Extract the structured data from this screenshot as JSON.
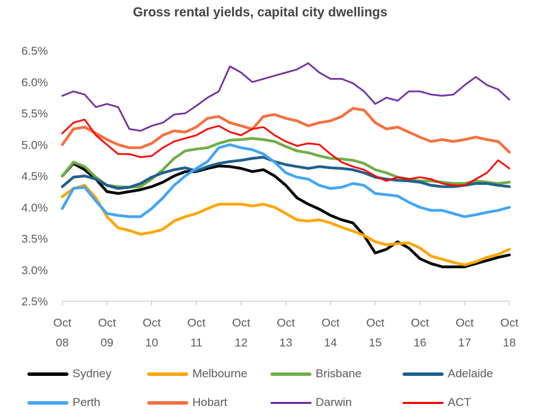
{
  "chart_data": {
    "type": "line",
    "title": "Gross rental yields, capital city dwellings",
    "xlabel": "",
    "ylabel": "",
    "x_ticks": [
      {
        "year": 2008,
        "top": "Oct",
        "bottom": "08"
      },
      {
        "year": 2009,
        "top": "Oct",
        "bottom": "09"
      },
      {
        "year": 2010,
        "top": "Oct",
        "bottom": "10"
      },
      {
        "year": 2011,
        "top": "Oct",
        "bottom": "11"
      },
      {
        "year": 2012,
        "top": "Oct",
        "bottom": "12"
      },
      {
        "year": 2013,
        "top": "Oct",
        "bottom": "13"
      },
      {
        "year": 2014,
        "top": "Oct",
        "bottom": "14"
      },
      {
        "year": 2015,
        "top": "Oct",
        "bottom": "15"
      },
      {
        "year": 2016,
        "top": "Oct",
        "bottom": "16"
      },
      {
        "year": 2017,
        "top": "Oct",
        "bottom": "17"
      },
      {
        "year": 2018,
        "top": "Oct",
        "bottom": "18"
      }
    ],
    "y_ticks": [
      2.5,
      3.0,
      3.5,
      4.0,
      4.5,
      5.0,
      5.5,
      6.0,
      6.5
    ],
    "y_tick_labels": [
      "2.5%",
      "3.0%",
      "3.5%",
      "4.0%",
      "4.5%",
      "5.0%",
      "5.5%",
      "6.0%",
      "6.5%"
    ],
    "xlim": [
      2008,
      2018
    ],
    "ylim": [
      2.5,
      6.5
    ],
    "x_unit": "years since Oct 2008 (Oct = .0)",
    "legend_position": "bottom",
    "series": [
      {
        "name": "Sydney",
        "color": "#000000",
        "x": [
          2008.0,
          2008.25,
          2008.5,
          2008.75,
          2009.0,
          2009.25,
          2009.5,
          2009.75,
          2010.0,
          2010.25,
          2010.5,
          2010.75,
          2011.0,
          2011.25,
          2011.5,
          2011.75,
          2012.0,
          2012.25,
          2012.5,
          2012.75,
          2013.0,
          2013.25,
          2013.5,
          2013.75,
          2014.0,
          2014.25,
          2014.5,
          2014.75,
          2015.0,
          2015.25,
          2015.5,
          2015.75,
          2016.0,
          2016.25,
          2016.5,
          2016.75,
          2017.0,
          2017.25,
          2017.5,
          2017.75,
          2018.0
        ],
        "y": [
          4.5,
          4.7,
          4.6,
          4.45,
          4.25,
          4.22,
          4.25,
          4.28,
          4.33,
          4.4,
          4.5,
          4.57,
          4.57,
          4.62,
          4.66,
          4.65,
          4.62,
          4.57,
          4.6,
          4.5,
          4.35,
          4.15,
          4.05,
          3.97,
          3.87,
          3.8,
          3.75,
          3.55,
          3.27,
          3.33,
          3.45,
          3.35,
          3.18,
          3.1,
          3.05,
          3.05,
          3.05,
          3.1,
          3.15,
          3.2,
          3.24
        ]
      },
      {
        "name": "Melbourne",
        "color": "#ffa500",
        "x": [
          2008.0,
          2008.25,
          2008.5,
          2008.75,
          2009.0,
          2009.25,
          2009.5,
          2009.75,
          2010.0,
          2010.25,
          2010.5,
          2010.75,
          2011.0,
          2011.25,
          2011.5,
          2011.75,
          2012.0,
          2012.25,
          2012.5,
          2012.75,
          2013.0,
          2013.25,
          2013.5,
          2013.75,
          2014.0,
          2014.25,
          2014.5,
          2014.75,
          2015.0,
          2015.25,
          2015.5,
          2015.75,
          2016.0,
          2016.25,
          2016.5,
          2016.75,
          2017.0,
          2017.25,
          2017.5,
          2017.75,
          2018.0
        ],
        "y": [
          4.17,
          4.3,
          4.35,
          4.15,
          3.85,
          3.67,
          3.63,
          3.57,
          3.6,
          3.65,
          3.78,
          3.85,
          3.9,
          3.98,
          4.05,
          4.05,
          4.05,
          4.02,
          4.05,
          4.0,
          3.9,
          3.8,
          3.78,
          3.8,
          3.75,
          3.68,
          3.62,
          3.55,
          3.45,
          3.4,
          3.42,
          3.43,
          3.35,
          3.22,
          3.17,
          3.12,
          3.08,
          3.13,
          3.2,
          3.25,
          3.33
        ]
      },
      {
        "name": "Brisbane",
        "color": "#70ad47",
        "x": [
          2008.0,
          2008.25,
          2008.5,
          2008.75,
          2009.0,
          2009.25,
          2009.5,
          2009.75,
          2010.0,
          2010.25,
          2010.5,
          2010.75,
          2011.0,
          2011.25,
          2011.5,
          2011.75,
          2012.0,
          2012.25,
          2012.5,
          2012.75,
          2013.0,
          2013.25,
          2013.5,
          2013.75,
          2014.0,
          2014.25,
          2014.5,
          2014.75,
          2015.0,
          2015.25,
          2015.5,
          2015.75,
          2016.0,
          2016.25,
          2016.5,
          2016.75,
          2017.0,
          2017.25,
          2017.5,
          2017.75,
          2018.0
        ],
        "y": [
          4.5,
          4.72,
          4.65,
          4.48,
          4.35,
          4.33,
          4.32,
          4.33,
          4.45,
          4.6,
          4.78,
          4.9,
          4.93,
          4.95,
          5.02,
          5.07,
          5.08,
          5.1,
          5.08,
          5.05,
          4.97,
          4.9,
          4.87,
          4.82,
          4.78,
          4.77,
          4.75,
          4.7,
          4.6,
          4.55,
          4.48,
          4.45,
          4.42,
          4.42,
          4.4,
          4.38,
          4.38,
          4.42,
          4.4,
          4.38,
          4.4
        ]
      },
      {
        "name": "Adelaide",
        "color": "#1f5f8b",
        "x": [
          2008.0,
          2008.25,
          2008.5,
          2008.75,
          2009.0,
          2009.25,
          2009.5,
          2009.75,
          2010.0,
          2010.25,
          2010.5,
          2010.75,
          2011.0,
          2011.25,
          2011.5,
          2011.75,
          2012.0,
          2012.25,
          2012.5,
          2012.75,
          2013.0,
          2013.25,
          2013.5,
          2013.75,
          2014.0,
          2014.25,
          2014.5,
          2014.75,
          2015.0,
          2015.25,
          2015.5,
          2015.75,
          2016.0,
          2016.25,
          2016.5,
          2016.75,
          2017.0,
          2017.25,
          2017.5,
          2017.75,
          2018.0
        ],
        "y": [
          4.33,
          4.48,
          4.5,
          4.45,
          4.35,
          4.3,
          4.32,
          4.38,
          4.48,
          4.55,
          4.6,
          4.63,
          4.58,
          4.65,
          4.7,
          4.73,
          4.75,
          4.78,
          4.8,
          4.73,
          4.68,
          4.65,
          4.62,
          4.65,
          4.63,
          4.62,
          4.6,
          4.55,
          4.48,
          4.45,
          4.43,
          4.42,
          4.4,
          4.35,
          4.33,
          4.33,
          4.35,
          4.38,
          4.38,
          4.35,
          4.33
        ]
      },
      {
        "name": "Perth",
        "color": "#42a5f5",
        "x": [
          2008.0,
          2008.25,
          2008.5,
          2008.75,
          2009.0,
          2009.25,
          2009.5,
          2009.75,
          2010.0,
          2010.25,
          2010.5,
          2010.75,
          2011.0,
          2011.25,
          2011.5,
          2011.75,
          2012.0,
          2012.25,
          2012.5,
          2012.75,
          2013.0,
          2013.25,
          2013.5,
          2013.75,
          2014.0,
          2014.25,
          2014.5,
          2014.75,
          2015.0,
          2015.25,
          2015.5,
          2015.75,
          2016.0,
          2016.25,
          2016.5,
          2016.75,
          2017.0,
          2017.25,
          2017.5,
          2017.75,
          2018.0
        ],
        "y": [
          3.98,
          4.3,
          4.32,
          4.1,
          3.9,
          3.87,
          3.85,
          3.85,
          3.98,
          4.15,
          4.35,
          4.5,
          4.62,
          4.73,
          4.95,
          5.0,
          4.95,
          4.92,
          4.85,
          4.72,
          4.55,
          4.48,
          4.45,
          4.35,
          4.3,
          4.32,
          4.38,
          4.35,
          4.22,
          4.2,
          4.18,
          4.08,
          4.0,
          3.95,
          3.95,
          3.9,
          3.85,
          3.88,
          3.92,
          3.95,
          4.0
        ]
      },
      {
        "name": "Hobart",
        "color": "#f4703f",
        "x": [
          2008.0,
          2008.25,
          2008.5,
          2008.75,
          2009.0,
          2009.25,
          2009.5,
          2009.75,
          2010.0,
          2010.25,
          2010.5,
          2010.75,
          2011.0,
          2011.25,
          2011.5,
          2011.75,
          2012.0,
          2012.25,
          2012.5,
          2012.75,
          2013.0,
          2013.25,
          2013.5,
          2013.75,
          2014.0,
          2014.25,
          2014.5,
          2014.75,
          2015.0,
          2015.25,
          2015.5,
          2015.75,
          2016.0,
          2016.25,
          2016.5,
          2016.75,
          2017.0,
          2017.25,
          2017.5,
          2017.75,
          2018.0
        ],
        "y": [
          5.0,
          5.25,
          5.28,
          5.18,
          5.08,
          5.0,
          4.95,
          4.95,
          5.02,
          5.15,
          5.22,
          5.2,
          5.28,
          5.42,
          5.45,
          5.35,
          5.3,
          5.25,
          5.45,
          5.48,
          5.42,
          5.38,
          5.3,
          5.35,
          5.38,
          5.45,
          5.58,
          5.55,
          5.35,
          5.25,
          5.28,
          5.2,
          5.12,
          5.05,
          5.08,
          5.05,
          5.08,
          5.12,
          5.08,
          5.05,
          4.88
        ]
      },
      {
        "name": "Darwin",
        "color": "#7030a0",
        "x": [
          2008.0,
          2008.25,
          2008.5,
          2008.75,
          2009.0,
          2009.25,
          2009.5,
          2009.75,
          2010.0,
          2010.25,
          2010.5,
          2010.75,
          2011.0,
          2011.25,
          2011.5,
          2011.75,
          2012.0,
          2012.25,
          2012.5,
          2012.75,
          2013.0,
          2013.25,
          2013.5,
          2013.75,
          2014.0,
          2014.25,
          2014.5,
          2014.75,
          2015.0,
          2015.25,
          2015.5,
          2015.75,
          2016.0,
          2016.25,
          2016.5,
          2016.75,
          2017.0,
          2017.25,
          2017.5,
          2017.75,
          2018.0
        ],
        "y": [
          5.78,
          5.85,
          5.8,
          5.6,
          5.65,
          5.6,
          5.25,
          5.22,
          5.3,
          5.35,
          5.48,
          5.5,
          5.62,
          5.75,
          5.85,
          6.25,
          6.15,
          6.0,
          6.05,
          6.1,
          6.15,
          6.2,
          6.3,
          6.15,
          6.05,
          6.05,
          5.98,
          5.85,
          5.65,
          5.75,
          5.7,
          5.85,
          5.85,
          5.8,
          5.78,
          5.8,
          5.95,
          6.08,
          5.95,
          5.88,
          5.72
        ]
      },
      {
        "name": "ACT",
        "color": "#ff0000",
        "x": [
          2008.0,
          2008.25,
          2008.5,
          2008.75,
          2009.0,
          2009.25,
          2009.5,
          2009.75,
          2010.0,
          2010.25,
          2010.5,
          2010.75,
          2011.0,
          2011.25,
          2011.5,
          2011.75,
          2012.0,
          2012.25,
          2012.5,
          2012.75,
          2013.0,
          2013.25,
          2013.5,
          2013.75,
          2014.0,
          2014.25,
          2014.5,
          2014.75,
          2015.0,
          2015.25,
          2015.5,
          2015.75,
          2016.0,
          2016.25,
          2016.5,
          2016.75,
          2017.0,
          2017.25,
          2017.5,
          2017.75,
          2018.0
        ],
        "y": [
          5.18,
          5.35,
          5.4,
          5.15,
          5.0,
          4.85,
          4.85,
          4.8,
          4.82,
          4.95,
          5.05,
          5.1,
          5.15,
          5.25,
          5.3,
          5.2,
          5.15,
          5.25,
          5.28,
          5.15,
          5.05,
          4.98,
          5.02,
          5.0,
          4.85,
          4.72,
          4.65,
          4.6,
          4.5,
          4.42,
          4.48,
          4.45,
          4.48,
          4.45,
          4.38,
          4.35,
          4.35,
          4.45,
          4.55,
          4.75,
          4.62
        ]
      }
    ]
  }
}
